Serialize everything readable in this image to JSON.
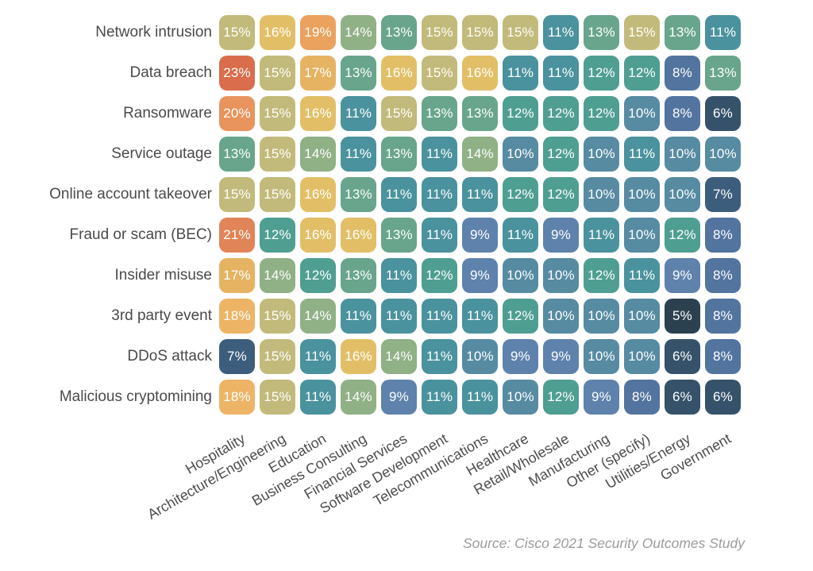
{
  "chart_data": {
    "type": "heatmap",
    "title": "",
    "unit": "%",
    "value_range": [
      5,
      23
    ],
    "legend_position": "none",
    "rows": [
      "Network intrusion",
      "Data breach",
      "Ransomware",
      "Service outage",
      "Online account takeover",
      "Fraud or scam (BEC)",
      "Insider misuse",
      "3rd party event",
      "DDoS attack",
      "Malicious cryptomining"
    ],
    "columns": [
      "Hospitality",
      "Architecture/Engineering",
      "Education",
      "Business Consulting",
      "Financial Services",
      "Software Development",
      "Telecommunications",
      "Healthcare",
      "Retail/Wholesale",
      "Manufacturing",
      "Other (specify)",
      "Utilities/Energy",
      "Government"
    ],
    "values": [
      [
        15,
        16,
        19,
        14,
        13,
        15,
        15,
        15,
        11,
        13,
        15,
        13,
        11
      ],
      [
        23,
        15,
        17,
        13,
        16,
        15,
        16,
        11,
        11,
        12,
        12,
        8,
        13
      ],
      [
        20,
        15,
        16,
        11,
        15,
        13,
        13,
        12,
        12,
        12,
        10,
        8,
        6
      ],
      [
        13,
        15,
        14,
        11,
        13,
        11,
        14,
        10,
        12,
        10,
        11,
        10,
        10
      ],
      [
        15,
        15,
        16,
        13,
        11,
        11,
        11,
        12,
        12,
        10,
        10,
        10,
        7
      ],
      [
        21,
        12,
        16,
        16,
        13,
        11,
        9,
        11,
        9,
        11,
        10,
        12,
        8
      ],
      [
        17,
        14,
        12,
        13,
        11,
        12,
        9,
        10,
        10,
        12,
        11,
        9,
        8
      ],
      [
        18,
        15,
        14,
        11,
        11,
        11,
        11,
        12,
        10,
        10,
        10,
        5,
        8
      ],
      [
        7,
        15,
        11,
        16,
        14,
        11,
        10,
        9,
        9,
        10,
        10,
        6,
        8
      ],
      [
        18,
        15,
        11,
        14,
        9,
        11,
        11,
        10,
        12,
        9,
        8,
        6,
        6
      ]
    ],
    "color_scale": {
      "5": "#2c4150",
      "6": "#35526a",
      "7": "#3d5d7c",
      "8": "#52749f",
      "9": "#5e82ac",
      "10": "#568ba2",
      "11": "#4a929d",
      "12": "#4f9e92",
      "13": "#68a58c",
      "14": "#90b086",
      "15": "#c2ba7a",
      "16": "#e2bf67",
      "17": "#e6b362",
      "18": "#edb466",
      "19": "#eba25e",
      "20": "#e8945c",
      "21": "#e18458",
      "23": "#d96d4c"
    }
  },
  "colors": {
    "background": "#ffffff",
    "row_label_text": "#4a4a4a",
    "column_label_text": "#4d4d4d",
    "cell_text": "#ffffff",
    "source_text": "#9c9c9c"
  },
  "source_note": "Source: Cisco 2021 Security Outcomes Study"
}
